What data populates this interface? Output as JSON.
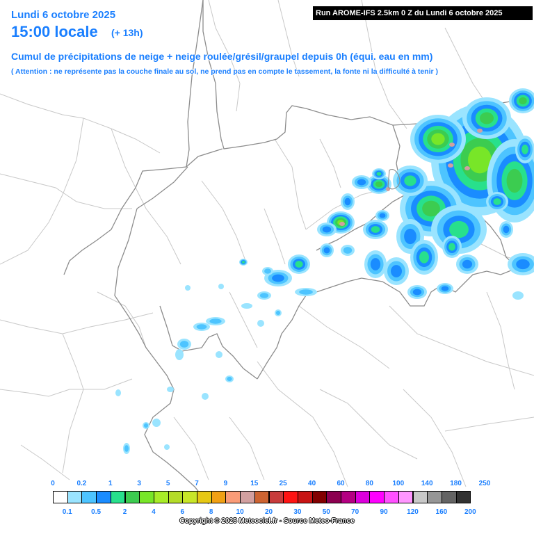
{
  "header": {
    "date": "Lundi 6 octobre 2025",
    "time": "15:00 locale",
    "lead": "(+ 13h)",
    "run": "Run AROME-IFS 2.5km 0 Z du Lundi 6 octobre 2025",
    "subtitle": "Cumul de précipitations de neige + neige roulée/grésil/graupel depuis 0h (équi. eau en mm)",
    "attention": "( Attention : ne représente pas la couche finale au sol, ne prend pas en compte le tassement, la fonte ni la difficulté à tenir )"
  },
  "legend": {
    "top_labels": [
      "0",
      "0.2",
      "1",
      "3",
      "5",
      "7",
      "9",
      "15",
      "25",
      "40",
      "60",
      "80",
      "100",
      "140",
      "180",
      "250"
    ],
    "bottom_labels": [
      "0.1",
      "0.5",
      "2",
      "4",
      "6",
      "8",
      "10",
      "20",
      "30",
      "50",
      "70",
      "90",
      "120",
      "160",
      "200"
    ],
    "colors": [
      "#ffffff",
      "#9ae4ff",
      "#4dc4ff",
      "#1a8cff",
      "#28e08c",
      "#3ccc50",
      "#78e628",
      "#a8ec28",
      "#b4dc28",
      "#c8e628",
      "#e6c814",
      "#f0a014",
      "#fa9c78",
      "#d2a0a0",
      "#cd6432",
      "#c83c3c",
      "#ff1414",
      "#c81414",
      "#820000",
      "#8c0050",
      "#b40082",
      "#dc00dc",
      "#ff00ff",
      "#ff50ff",
      "#ff96ff",
      "#c8c8c8",
      "#969696",
      "#646464",
      "#323232"
    ]
  },
  "copyright": "Copyright © 2025 Meteociel.fr - Source Meteo-France"
}
